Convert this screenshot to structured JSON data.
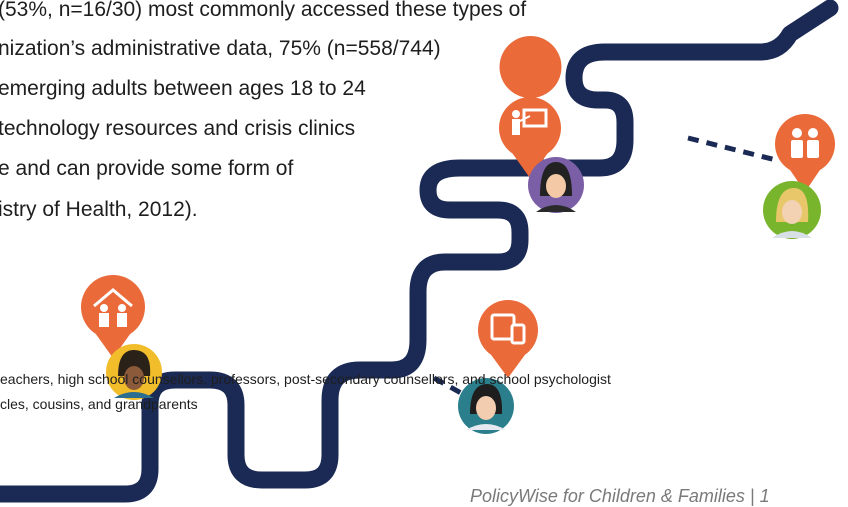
{
  "body": {
    "lines": [
      "(53%, n=16/30) most commonly accessed these types of",
      "nization’s administrative data, 75% (n=558/744)",
      "emerging adults between ages 18 to 24",
      "technology resources and crisis clinics",
      "e and can provide some form of",
      "istry of Health, 2012)."
    ]
  },
  "footnotes": [
    "eachers, high school counsellors, professors, post-secondary counsellors, and school psychologist",
    "cles, cousins, and grandparents"
  ],
  "footer": {
    "text": "PolicyWise for Children & Families | 1"
  },
  "colors": {
    "path": "#1b2a55",
    "orange": "#ea6a3a",
    "purple": "#7b5fa6",
    "green": "#78b52d",
    "yellow": "#f2bd2a",
    "teal": "#2b7f8c"
  }
}
